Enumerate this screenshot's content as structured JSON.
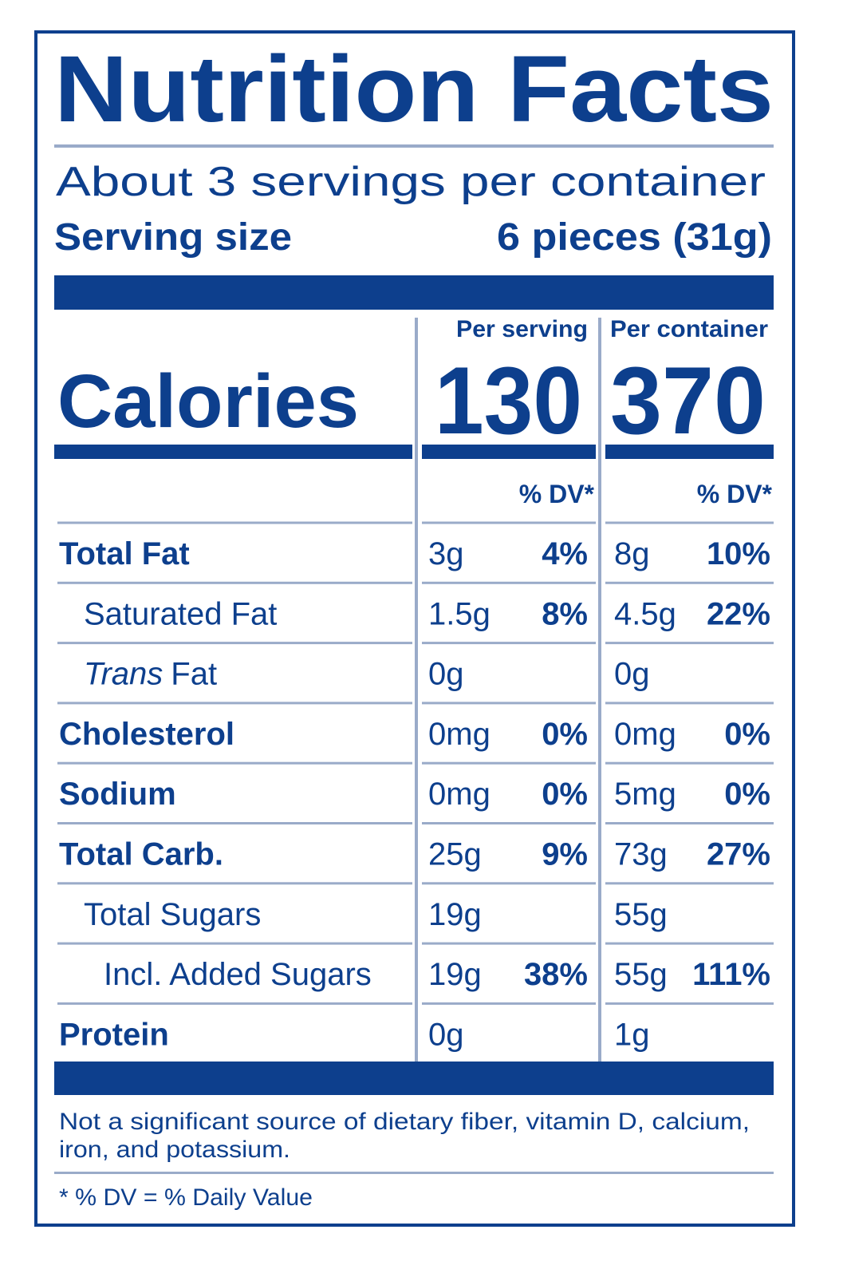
{
  "header": {
    "title": "Nutrition Facts",
    "servings": "About 3 servings per container",
    "serving_size_label": "Serving size",
    "serving_size_value": "6 pieces (31g)"
  },
  "calories": {
    "label": "Calories",
    "columns": [
      "Per serving",
      "Per container"
    ],
    "values": [
      "130",
      "370"
    ]
  },
  "dv_headers": [
    "% DV*",
    "% DV*"
  ],
  "rows": [
    {
      "name": "Total Fat",
      "serving": [
        "3g",
        "4%"
      ],
      "container": [
        "8g",
        "10%"
      ]
    },
    {
      "name": "Saturated Fat",
      "serving": [
        "1.5g",
        "8%"
      ],
      "container": [
        "4.5g",
        "22%"
      ]
    },
    {
      "name_italic": "Trans",
      "name": "Fat",
      "serving": [
        "0g",
        null
      ],
      "container": [
        "0g",
        null
      ]
    },
    {
      "name": "Cholesterol",
      "serving": [
        "0mg",
        "0%"
      ],
      "container": [
        "0mg",
        "0%"
      ]
    },
    {
      "name": "Sodium",
      "serving": [
        "0mg",
        "0%"
      ],
      "container": [
        "5mg",
        "0%"
      ]
    },
    {
      "name": "Total Carb.",
      "serving": [
        "25g",
        "9%"
      ],
      "container": [
        "73g",
        "27%"
      ]
    },
    {
      "name": "Total Sugars",
      "serving": [
        "19g",
        null
      ],
      "container": [
        "55g",
        null
      ]
    },
    {
      "name": "Incl. Added Sugars",
      "serving": [
        "19g",
        "38%"
      ],
      "container": [
        "55g",
        "111%"
      ]
    },
    {
      "name": "Protein",
      "serving": [
        "0g",
        null
      ],
      "container": [
        "1g",
        null
      ]
    }
  ],
  "footnote": {
    "lines": [
      "Not a significant source of dietary fiber, vitamin D, calcium,",
      "iron, and potassium."
    ],
    "dv_note": "* % DV = % Daily Value"
  }
}
